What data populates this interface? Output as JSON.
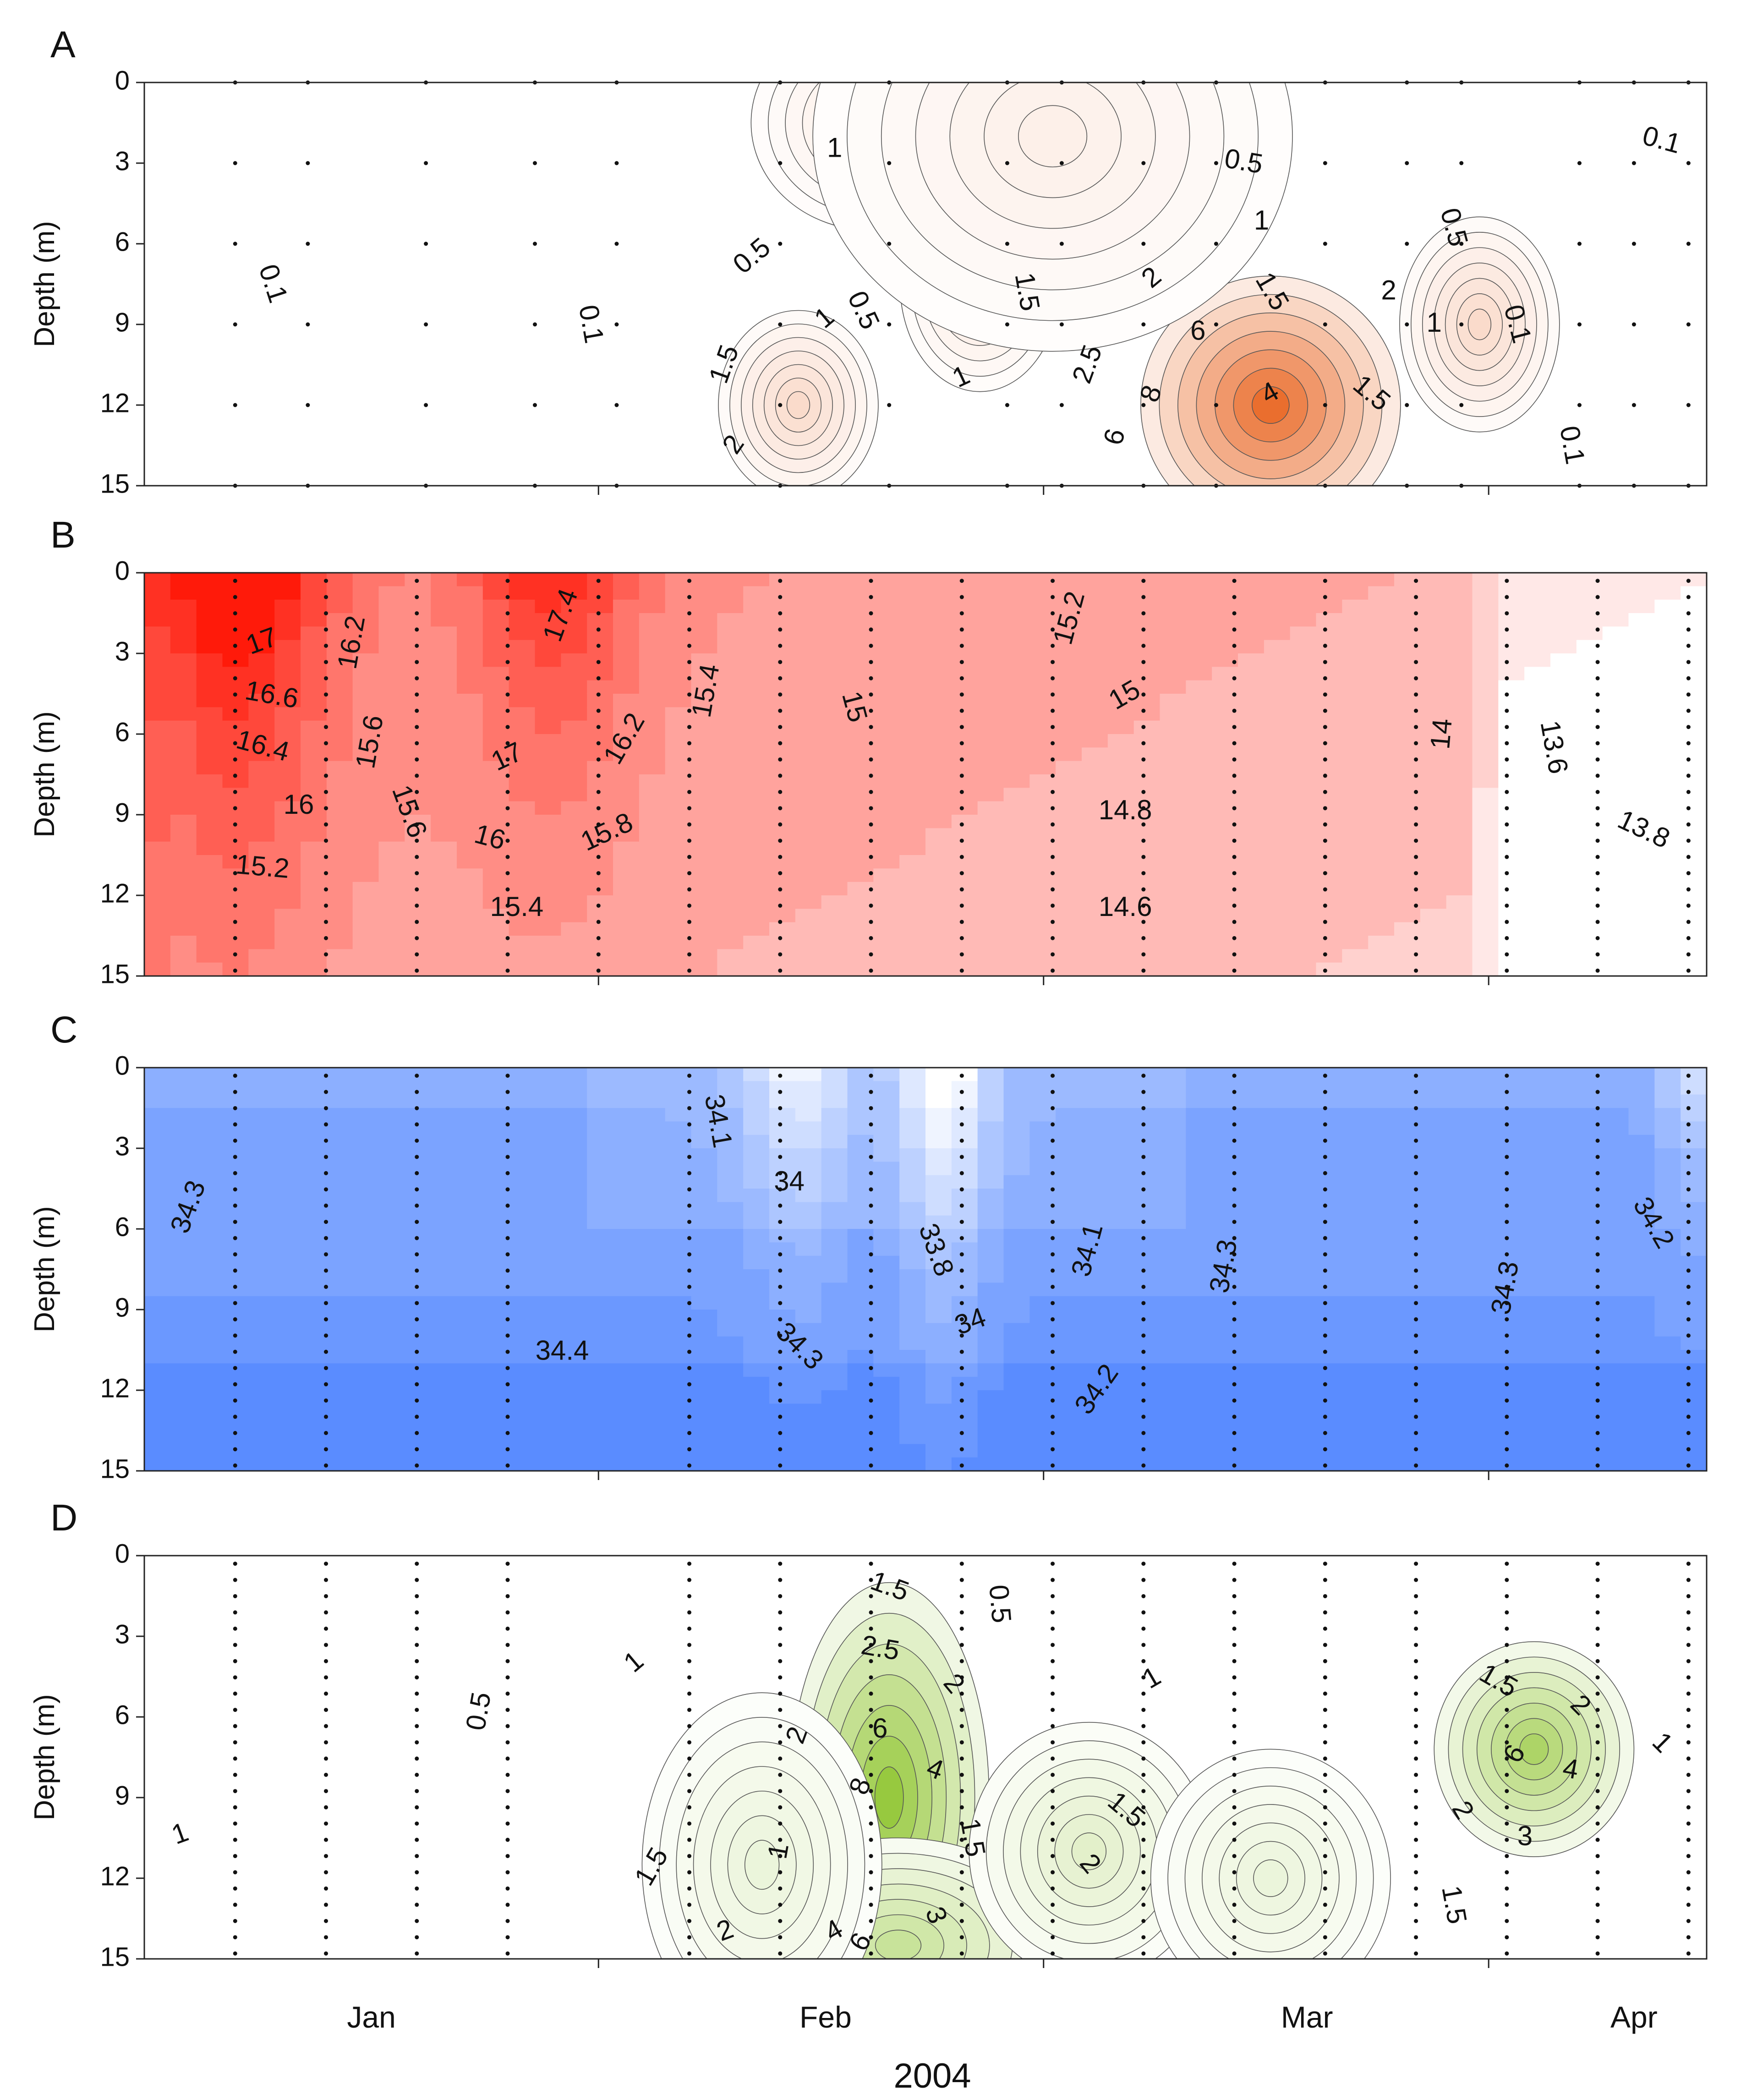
{
  "figure": {
    "x_axis_title": "2004",
    "month_labels": [
      "Jan",
      "Feb",
      "Mar",
      "Apr"
    ],
    "y_axis_title": "Depth (m)",
    "depth_ticks": [
      "0",
      "3",
      "6",
      "9",
      "12",
      "15"
    ]
  },
  "chart_data": [
    {
      "type": "heatmap",
      "panel_label": "A",
      "ylabel": "Depth (m)",
      "xlabel": "",
      "ylim": [
        0,
        15
      ],
      "y_ticks": [
        0,
        3,
        6,
        9,
        12,
        15
      ],
      "x_categories": [
        "Jan",
        "Feb",
        "Mar",
        "Apr"
      ],
      "colors": {
        "low": "#ffffff",
        "high": "#e8601a"
      },
      "value_range": [
        0,
        10
      ],
      "sampling_days": [
        10,
        18,
        31,
        43,
        52,
        70,
        82,
        95,
        101,
        110,
        118,
        130,
        139,
        145,
        158,
        164,
        170
      ],
      "hotspots": [
        {
          "day": 72,
          "depth": 12,
          "value": 2.4,
          "sx": 4,
          "sy": 2.2
        },
        {
          "day": 124,
          "depth": 12,
          "value": 9.6,
          "sx": 6.5,
          "sy": 3
        },
        {
          "day": 147,
          "depth": 9,
          "value": 2.4,
          "sx": 4,
          "sy": 2.5
        },
        {
          "day": 92,
          "depth": 7.5,
          "value": 1.6,
          "sx": 4,
          "sy": 2.5
        },
        {
          "day": 80,
          "depth": 1.5,
          "value": 1.2,
          "sx": 6,
          "sy": 2.5
        },
        {
          "day": 100,
          "depth": 2,
          "value": 1.0,
          "sx": 12,
          "sy": 5
        }
      ],
      "contour_labels": [
        {
          "text": "0.1",
          "day": 14,
          "depth": 7.5,
          "rot": 72
        },
        {
          "text": "0.1",
          "day": 49,
          "depth": 9,
          "rot": 80
        },
        {
          "text": "0.5",
          "day": 67,
          "depth": 6.5,
          "rot": -40
        },
        {
          "text": "1",
          "day": 75,
          "depth": 8.8,
          "rot": -40
        },
        {
          "text": "1.5",
          "day": 64,
          "depth": 10.5,
          "rot": -70
        },
        {
          "text": "2",
          "day": 65,
          "depth": 13.5,
          "rot": -55
        },
        {
          "text": "0.5",
          "day": 79,
          "depth": 8.5,
          "rot": 65
        },
        {
          "text": "1",
          "day": 76,
          "depth": 2.5,
          "rot": 0
        },
        {
          "text": "1",
          "day": 90,
          "depth": 11,
          "rot": -25
        },
        {
          "text": "1.5",
          "day": 97,
          "depth": 7.8,
          "rot": 80
        },
        {
          "text": "0.5",
          "day": 121,
          "depth": 3,
          "rot": 10
        },
        {
          "text": "1",
          "day": 123,
          "depth": 5.2,
          "rot": 0
        },
        {
          "text": "1.5",
          "day": 124,
          "depth": 7.8,
          "rot": 60
        },
        {
          "text": "2",
          "day": 111,
          "depth": 7.3,
          "rot": -40
        },
        {
          "text": "2.5",
          "day": 104,
          "depth": 10.5,
          "rot": -70
        },
        {
          "text": "6",
          "day": 116,
          "depth": 9.3,
          "rot": 0
        },
        {
          "text": "8",
          "day": 111,
          "depth": 11.6,
          "rot": -70
        },
        {
          "text": "4",
          "day": 124,
          "depth": 11.6,
          "rot": -30
        },
        {
          "text": "6",
          "day": 107,
          "depth": 13.2,
          "rot": -75
        },
        {
          "text": "2",
          "day": 137,
          "depth": 7.8,
          "rot": 0
        },
        {
          "text": "1",
          "day": 142,
          "depth": 9,
          "rot": 0
        },
        {
          "text": "1.5",
          "day": 135,
          "depth": 11.6,
          "rot": 40
        },
        {
          "text": "0.5",
          "day": 144,
          "depth": 5.4,
          "rot": 75
        },
        {
          "text": "0.1",
          "day": 151,
          "depth": 9,
          "rot": 75
        },
        {
          "text": "0.1",
          "day": 157,
          "depth": 13.5,
          "rot": 80
        },
        {
          "text": "0.1",
          "day": 167,
          "depth": 2.2,
          "rot": 15
        }
      ]
    },
    {
      "type": "heatmap",
      "panel_label": "B",
      "ylabel": "Depth (m)",
      "xlabel": "",
      "ylim": [
        0,
        15
      ],
      "y_ticks": [
        0,
        3,
        6,
        9,
        12,
        15
      ],
      "x_categories": [
        "Jan",
        "Feb",
        "Mar",
        "Apr"
      ],
      "colors": {
        "low": "#ffffff",
        "high": "#ff1a0a"
      },
      "value_range": [
        13.6,
        17.6
      ],
      "sampling_days": [
        10,
        20,
        30,
        40,
        50,
        60,
        70,
        80,
        90,
        100,
        110,
        120,
        130,
        140,
        150,
        160,
        170
      ],
      "contour_labels": [
        {
          "text": "17",
          "day": 13,
          "depth": 2.6,
          "rot": -20
        },
        {
          "text": "16.6",
          "day": 14,
          "depth": 4.6,
          "rot": 10
        },
        {
          "text": "16.4",
          "day": 13,
          "depth": 6.5,
          "rot": 15
        },
        {
          "text": "16",
          "day": 17,
          "depth": 8.7,
          "rot": 0
        },
        {
          "text": "16.2",
          "day": 23,
          "depth": 2.6,
          "rot": -80
        },
        {
          "text": "15.6",
          "day": 25,
          "depth": 6.3,
          "rot": -80
        },
        {
          "text": "15.6",
          "day": 29,
          "depth": 8.9,
          "rot": 70
        },
        {
          "text": "15.2",
          "day": 13,
          "depth": 11,
          "rot": 5
        },
        {
          "text": "17.4",
          "day": 46,
          "depth": 1.6,
          "rot": -70
        },
        {
          "text": "17",
          "day": 40,
          "depth": 6.9,
          "rot": -25
        },
        {
          "text": "16",
          "day": 38,
          "depth": 9.9,
          "rot": 15
        },
        {
          "text": "16.2",
          "day": 53,
          "depth": 6.2,
          "rot": -60
        },
        {
          "text": "15.8",
          "day": 51,
          "depth": 9.7,
          "rot": -25
        },
        {
          "text": "15.4",
          "day": 62,
          "depth": 4.4,
          "rot": -80
        },
        {
          "text": "15.4",
          "day": 41,
          "depth": 12.5,
          "rot": 0
        },
        {
          "text": "15",
          "day": 78,
          "depth": 5,
          "rot": 75
        },
        {
          "text": "15.2",
          "day": 102,
          "depth": 1.7,
          "rot": -75
        },
        {
          "text": "15",
          "day": 108,
          "depth": 4.6,
          "rot": -30
        },
        {
          "text": "14.8",
          "day": 108,
          "depth": 8.9,
          "rot": 0
        },
        {
          "text": "14.6",
          "day": 108,
          "depth": 12.5,
          "rot": 0
        },
        {
          "text": "14",
          "day": 143,
          "depth": 6,
          "rot": -85
        },
        {
          "text": "13.6",
          "day": 155,
          "depth": 6.5,
          "rot": 80
        },
        {
          "text": "13.8",
          "day": 165,
          "depth": 9.6,
          "rot": 25
        }
      ]
    },
    {
      "type": "heatmap",
      "panel_label": "C",
      "ylabel": "Depth (m)",
      "xlabel": "",
      "ylim": [
        0,
        15
      ],
      "y_ticks": [
        0,
        3,
        6,
        9,
        12,
        15
      ],
      "x_categories": [
        "Jan",
        "Feb",
        "Mar",
        "Apr"
      ],
      "colors": {
        "low": "#ffffff",
        "high": "#5a8cff"
      },
      "value_range": [
        33.7,
        34.5
      ],
      "sampling_days": [
        10,
        20,
        30,
        40,
        60,
        70,
        80,
        90,
        100,
        110,
        120,
        130,
        140,
        150,
        160,
        170
      ],
      "contour_labels": [
        {
          "text": "34.3",
          "day": 5,
          "depth": 5.2,
          "rot": -70
        },
        {
          "text": "34.4",
          "day": 46,
          "depth": 10.6,
          "rot": 0
        },
        {
          "text": "34.1",
          "day": 63,
          "depth": 2,
          "rot": 80
        },
        {
          "text": "34",
          "day": 71,
          "depth": 4.3,
          "rot": 0
        },
        {
          "text": "34.3",
          "day": 72,
          "depth": 10.4,
          "rot": 45
        },
        {
          "text": "33.8",
          "day": 87,
          "depth": 6.8,
          "rot": 70
        },
        {
          "text": "34",
          "day": 91,
          "depth": 9.5,
          "rot": -20
        },
        {
          "text": "34.1",
          "day": 104,
          "depth": 6.8,
          "rot": -75
        },
        {
          "text": "34.2",
          "day": 105,
          "depth": 12,
          "rot": -55
        },
        {
          "text": "34.3",
          "day": 119,
          "depth": 7.4,
          "rot": -80
        },
        {
          "text": "34.3",
          "day": 150,
          "depth": 8.2,
          "rot": -80
        },
        {
          "text": "34.2",
          "day": 166,
          "depth": 5.8,
          "rot": 60
        }
      ]
    },
    {
      "type": "heatmap",
      "panel_label": "D",
      "ylabel": "Depth (m)",
      "xlabel": "",
      "ylim": [
        0,
        15
      ],
      "y_ticks": [
        0,
        3,
        6,
        9,
        12,
        15
      ],
      "x_categories": [
        "Jan",
        "Feb",
        "Mar",
        "Apr"
      ],
      "colors": {
        "low": "#ffffff",
        "high": "#8cc32a"
      },
      "value_range": [
        0,
        10
      ],
      "sampling_days": [
        10,
        20,
        30,
        40,
        60,
        70,
        80,
        90,
        100,
        110,
        120,
        130,
        140,
        150,
        160,
        170
      ],
      "hotspots": [
        {
          "day": 82,
          "depth": 9,
          "value": 9.5,
          "sx": 5,
          "sy": 5
        },
        {
          "day": 153,
          "depth": 7.2,
          "value": 7.5,
          "sx": 5,
          "sy": 2.5
        },
        {
          "day": 83,
          "depth": 14.5,
          "value": 5,
          "sx": 8,
          "sy": 2.5
        },
        {
          "day": 104,
          "depth": 11,
          "value": 2.6,
          "sx": 6,
          "sy": 3
        },
        {
          "day": 68,
          "depth": 11.5,
          "value": 1.8,
          "sx": 6,
          "sy": 4
        },
        {
          "day": 124,
          "depth": 12,
          "value": 1.8,
          "sx": 6,
          "sy": 3
        }
      ],
      "contour_labels": [
        {
          "text": "1",
          "day": 4,
          "depth": 10.4,
          "rot": -20
        },
        {
          "text": "0.5",
          "day": 37,
          "depth": 5.8,
          "rot": -80
        },
        {
          "text": "1",
          "day": 54,
          "depth": 4,
          "rot": -40
        },
        {
          "text": "1.5",
          "day": 56,
          "depth": 11.6,
          "rot": -60
        },
        {
          "text": "2",
          "day": 64,
          "depth": 14,
          "rot": -20
        },
        {
          "text": "1",
          "day": 70,
          "depth": 11,
          "rot": -80
        },
        {
          "text": "1.5",
          "day": 82,
          "depth": 1.2,
          "rot": 20
        },
        {
          "text": "2.5",
          "day": 81,
          "depth": 3.5,
          "rot": 10
        },
        {
          "text": "2",
          "day": 89,
          "depth": 4.8,
          "rot": 50
        },
        {
          "text": "2",
          "day": 72,
          "depth": 6.7,
          "rot": -70
        },
        {
          "text": "6",
          "day": 81,
          "depth": 6.5,
          "rot": 0
        },
        {
          "text": "8",
          "day": 79,
          "depth": 8.6,
          "rot": -70
        },
        {
          "text": "4",
          "day": 87,
          "depth": 8,
          "rot": 20
        },
        {
          "text": "1.5",
          "day": 91,
          "depth": 10.5,
          "rot": 80
        },
        {
          "text": "3",
          "day": 87,
          "depth": 13.4,
          "rot": 70
        },
        {
          "text": "4",
          "day": 76,
          "depth": 14,
          "rot": -30
        },
        {
          "text": "6",
          "day": 79,
          "depth": 14.4,
          "rot": -60
        },
        {
          "text": "0.5",
          "day": 94,
          "depth": 1.8,
          "rot": 85
        },
        {
          "text": "1",
          "day": 111,
          "depth": 4.6,
          "rot": -30
        },
        {
          "text": "1.5",
          "day": 108,
          "depth": 9.5,
          "rot": 40
        },
        {
          "text": "2",
          "day": 104,
          "depth": 11.5,
          "rot": 50
        },
        {
          "text": "1.5",
          "day": 149,
          "depth": 4.7,
          "rot": 30
        },
        {
          "text": "2",
          "day": 158,
          "depth": 5.6,
          "rot": 45
        },
        {
          "text": "1",
          "day": 167,
          "depth": 7,
          "rot": 45
        },
        {
          "text": "6",
          "day": 151,
          "depth": 7.4,
          "rot": -60
        },
        {
          "text": "4",
          "day": 157,
          "depth": 8,
          "rot": 10
        },
        {
          "text": "2",
          "day": 145,
          "depth": 9.5,
          "rot": 60
        },
        {
          "text": "3",
          "day": 152,
          "depth": 10.5,
          "rot": 0
        },
        {
          "text": "1.5",
          "day": 144,
          "depth": 13,
          "rot": 80
        }
      ]
    }
  ]
}
